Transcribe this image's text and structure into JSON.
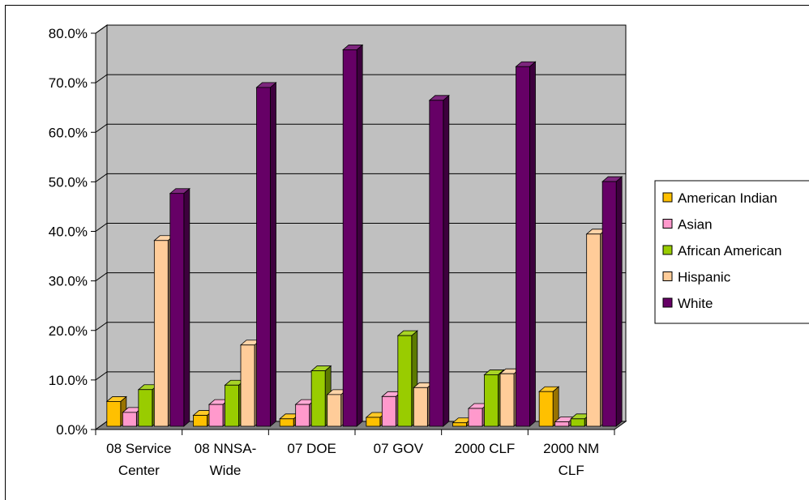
{
  "chart_data": {
    "type": "bar",
    "title": "",
    "xlabel": "",
    "ylabel": "",
    "ylim": [
      0,
      80
    ],
    "y_tick_values": [
      0,
      10,
      20,
      30,
      40,
      50,
      60,
      70,
      80
    ],
    "y_tick_labels": [
      "0.0%",
      "10.0%",
      "20.0%",
      "30.0%",
      "40.0%",
      "50.0%",
      "60.0%",
      "70.0%",
      "80.0%"
    ],
    "categories": [
      [
        "08 Service",
        "Center"
      ],
      [
        "08 NNSA-",
        "Wide"
      ],
      [
        "07 DOE"
      ],
      [
        "07 GOV"
      ],
      [
        "2000 CLF"
      ],
      [
        "2000 NM",
        "CLF"
      ]
    ],
    "series": [
      {
        "name": "American Indian",
        "color": "#FFC000",
        "values": [
          5.0,
          2.2,
          1.5,
          1.8,
          0.7,
          7.0
        ]
      },
      {
        "name": "Asian",
        "color": "#FF99CC",
        "values": [
          2.8,
          4.4,
          4.4,
          6.0,
          3.6,
          0.9
        ]
      },
      {
        "name": "African American",
        "color": "#99CC00",
        "values": [
          7.4,
          8.3,
          11.2,
          18.3,
          10.4,
          1.5
        ]
      },
      {
        "name": "Hispanic",
        "color": "#FFCC99",
        "values": [
          37.5,
          16.4,
          6.4,
          7.8,
          10.6,
          38.8
        ]
      },
      {
        "name": "White",
        "color": "#660066",
        "values": [
          47.0,
          68.4,
          76.0,
          65.8,
          72.6,
          49.4
        ]
      }
    ],
    "grid": true,
    "legend_position": "right",
    "style": "3d-clustered-column",
    "wall_color": "#C0C0C0",
    "floor_color": "#808080"
  }
}
